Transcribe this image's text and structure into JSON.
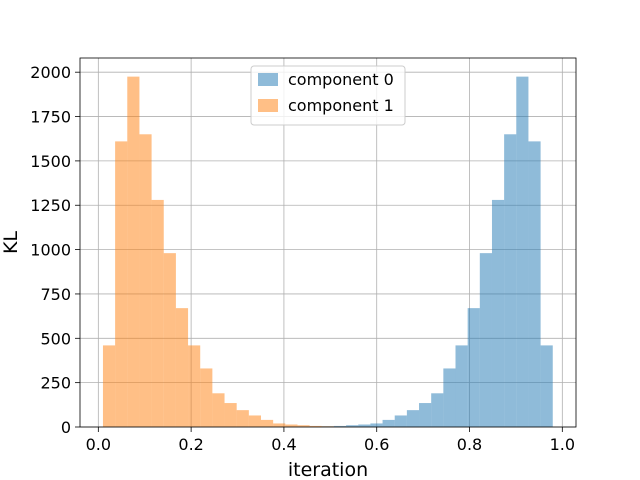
{
  "chart_data": {
    "type": "bar",
    "xlabel": "iteration",
    "ylabel": "KL",
    "xlim": [
      -0.0395,
      1.0295
    ],
    "ylim": [
      0,
      2080
    ],
    "grid": true,
    "legend_position": "upper center",
    "x_ticks": [
      0.0,
      0.2,
      0.4,
      0.6,
      0.8,
      1.0
    ],
    "x_tick_labels": [
      "0.0",
      "0.2",
      "0.4",
      "0.6",
      "0.8",
      "1.0"
    ],
    "y_ticks": [
      0,
      250,
      500,
      750,
      1000,
      1250,
      1500,
      1750,
      2000
    ],
    "y_tick_labels": [
      "0",
      "250",
      "500",
      "750",
      "1000",
      "1250",
      "1500",
      "1750",
      "2000"
    ],
    "bin_edges": [
      0.01,
      0.0362,
      0.0624,
      0.0886,
      0.1148,
      0.141,
      0.1672,
      0.1934,
      0.2196,
      0.2458,
      0.272,
      0.2982,
      0.3244,
      0.3506,
      0.3768,
      0.403,
      0.4292,
      0.4554,
      0.4816,
      0.5078,
      0.534,
      0.5602,
      0.5864,
      0.6126,
      0.6388,
      0.665,
      0.6912,
      0.7174,
      0.7436,
      0.7698,
      0.796,
      0.8222,
      0.8484,
      0.8746,
      0.9008,
      0.927,
      0.9532,
      0.9794
    ],
    "series": [
      {
        "name": "component 0",
        "color": "#1f77b4",
        "alpha": 0.5,
        "values": [
          0,
          0,
          0,
          0,
          0,
          0,
          0,
          0,
          0,
          0,
          0,
          0,
          0,
          0,
          0,
          0,
          0,
          2,
          4,
          6,
          10,
          14,
          20,
          40,
          65,
          95,
          135,
          190,
          330,
          460,
          670,
          980,
          1280,
          1650,
          1975,
          1610,
          460
        ]
      },
      {
        "name": "component 1",
        "color": "#ff7f0e",
        "alpha": 0.5,
        "values": [
          460,
          1610,
          1975,
          1650,
          1280,
          980,
          670,
          460,
          330,
          190,
          135,
          95,
          65,
          40,
          20,
          14,
          10,
          6,
          4,
          2,
          0,
          0,
          0,
          0,
          0,
          0,
          0,
          0,
          0,
          0,
          0,
          0,
          0,
          0,
          0,
          0,
          0
        ]
      }
    ]
  }
}
